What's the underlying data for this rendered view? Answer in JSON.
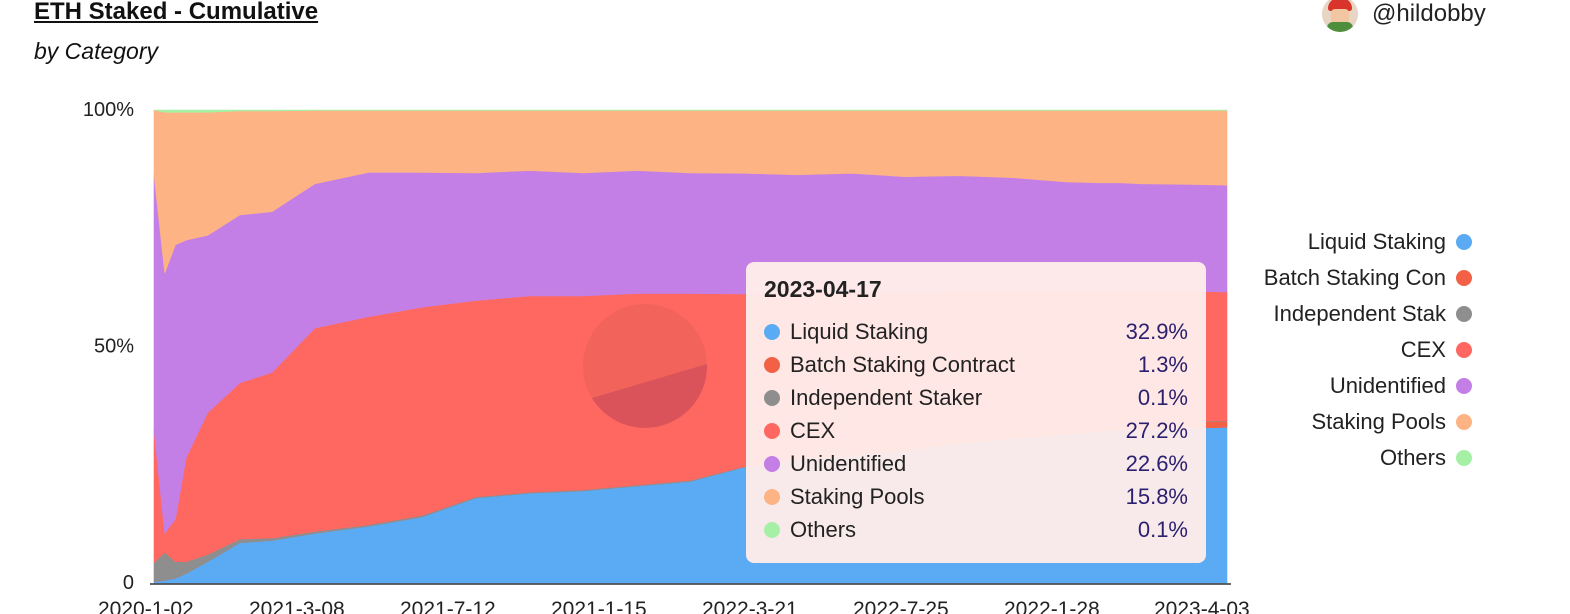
{
  "header": {
    "title": "ETH Staked - Cumulative",
    "subtitle": "by Category",
    "author": "@hildobby"
  },
  "legend": [
    {
      "label": "Liquid Staking",
      "color": "#5aabf3"
    },
    {
      "label": "Batch Staking Con",
      "color": "#f26146"
    },
    {
      "label": "Independent Stak",
      "color": "#8e8e8e"
    },
    {
      "label": "CEX",
      "color": "#ff6860"
    },
    {
      "label": "Unidentified",
      "color": "#c47fe6"
    },
    {
      "label": "Staking Pools",
      "color": "#fdb384"
    },
    {
      "label": "Others",
      "color": "#a6f0a6"
    }
  ],
  "tooltip": {
    "date": "2023-04-17",
    "rows": [
      {
        "label": "Liquid Staking",
        "value": "32.9%",
        "color": "#5aabf3"
      },
      {
        "label": "Batch Staking Contract",
        "value": "1.3%",
        "color": "#f26146"
      },
      {
        "label": "Independent Staker",
        "value": "0.1%",
        "color": "#8e8e8e"
      },
      {
        "label": "CEX",
        "value": "27.2%",
        "color": "#ff6860"
      },
      {
        "label": "Unidentified",
        "value": "22.6%",
        "color": "#c47fe6"
      },
      {
        "label": "Staking Pools",
        "value": "15.8%",
        "color": "#fdb384"
      },
      {
        "label": "Others",
        "value": "0.1%",
        "color": "#a6f0a6"
      }
    ]
  },
  "chart_data": {
    "type": "area",
    "stacked": true,
    "normalized": true,
    "title": "ETH Staked - Cumulative",
    "subtitle": "by Category",
    "ylim": [
      0,
      100
    ],
    "y_ticks": [
      "0",
      "50%",
      "100%"
    ],
    "x_tick_labels": [
      "2020-1-02",
      "2021-3-08",
      "2021-7-12",
      "2021-1-15",
      "2022-3-21",
      "2022-7-25",
      "2022-1-28",
      "2023-4-03"
    ],
    "x": [
      0,
      1,
      2,
      3,
      5,
      8,
      11,
      15,
      20,
      25,
      30,
      35,
      40,
      45,
      50,
      55,
      60,
      65,
      70,
      75,
      80,
      85,
      88,
      90,
      92,
      95,
      98,
      100
    ],
    "series": [
      {
        "name": "Liquid Staking",
        "color": "#5aabf3",
        "values": [
          0.3,
          0.5,
          1.0,
          2.0,
          4.5,
          8.5,
          9.0,
          10.5,
          12.0,
          14.0,
          18.0,
          19.0,
          19.5,
          20.5,
          21.5,
          24.5,
          26.0,
          27.0,
          28.0,
          29.5,
          30.5,
          31.5,
          32.0,
          32.3,
          32.5,
          32.7,
          32.8,
          32.9
        ]
      },
      {
        "name": "Batch Staking Contract",
        "color": "#f26146",
        "values": [
          0.0,
          0.0,
          0.0,
          0.0,
          0.0,
          0.0,
          0.0,
          0.0,
          0.0,
          0.0,
          0.0,
          0.0,
          0.0,
          0.0,
          0.0,
          0.0,
          0.2,
          0.5,
          0.8,
          1.0,
          1.1,
          1.2,
          1.2,
          1.25,
          1.3,
          1.3,
          1.3,
          1.3
        ]
      },
      {
        "name": "Independent Staker",
        "color": "#8e8e8e",
        "values": [
          4.0,
          6.0,
          3.5,
          2.5,
          1.5,
          0.8,
          0.5,
          0.4,
          0.3,
          0.3,
          0.2,
          0.2,
          0.2,
          0.2,
          0.2,
          0.1,
          0.1,
          0.1,
          0.1,
          0.1,
          0.1,
          0.1,
          0.1,
          0.1,
          0.1,
          0.1,
          0.1,
          0.1
        ]
      },
      {
        "name": "CEX",
        "color": "#ff6860",
        "values": [
          28.0,
          4.0,
          9.0,
          22.0,
          30.0,
          33.0,
          35.0,
          43.0,
          44.0,
          44.0,
          41.5,
          41.5,
          41.0,
          40.5,
          39.5,
          36.5,
          35.0,
          34.0,
          32.5,
          31.0,
          30.0,
          29.0,
          28.5,
          28.2,
          27.8,
          27.6,
          27.4,
          27.2
        ]
      },
      {
        "name": "Unidentified",
        "color": "#c47fe6",
        "values": [
          54.0,
          55.0,
          58.0,
          46.0,
          37.5,
          35.5,
          34.0,
          30.5,
          30.5,
          28.5,
          27.0,
          26.5,
          26.0,
          26.0,
          25.5,
          25.5,
          25.0,
          25.0,
          24.5,
          24.5,
          24.0,
          23.0,
          22.8,
          22.8,
          22.7,
          22.6,
          22.6,
          22.6
        ]
      },
      {
        "name": "Staking Pools",
        "color": "#fdb384",
        "values": [
          13.7,
          34.0,
          28.0,
          27.0,
          26.0,
          22.0,
          21.3,
          15.5,
          13.1,
          13.1,
          13.2,
          12.7,
          13.2,
          12.7,
          13.2,
          13.3,
          13.6,
          13.3,
          14.0,
          13.8,
          14.2,
          15.1,
          15.3,
          15.3,
          15.5,
          15.6,
          15.7,
          15.8
        ]
      },
      {
        "name": "Others",
        "color": "#a6f0a6",
        "values": [
          0.0,
          0.5,
          0.5,
          0.5,
          0.5,
          0.2,
          0.2,
          0.1,
          0.1,
          0.1,
          0.1,
          0.1,
          0.1,
          0.1,
          0.1,
          0.1,
          0.1,
          0.1,
          0.1,
          0.1,
          0.1,
          0.1,
          0.1,
          0.1,
          0.1,
          0.1,
          0.1,
          0.1
        ]
      }
    ]
  }
}
